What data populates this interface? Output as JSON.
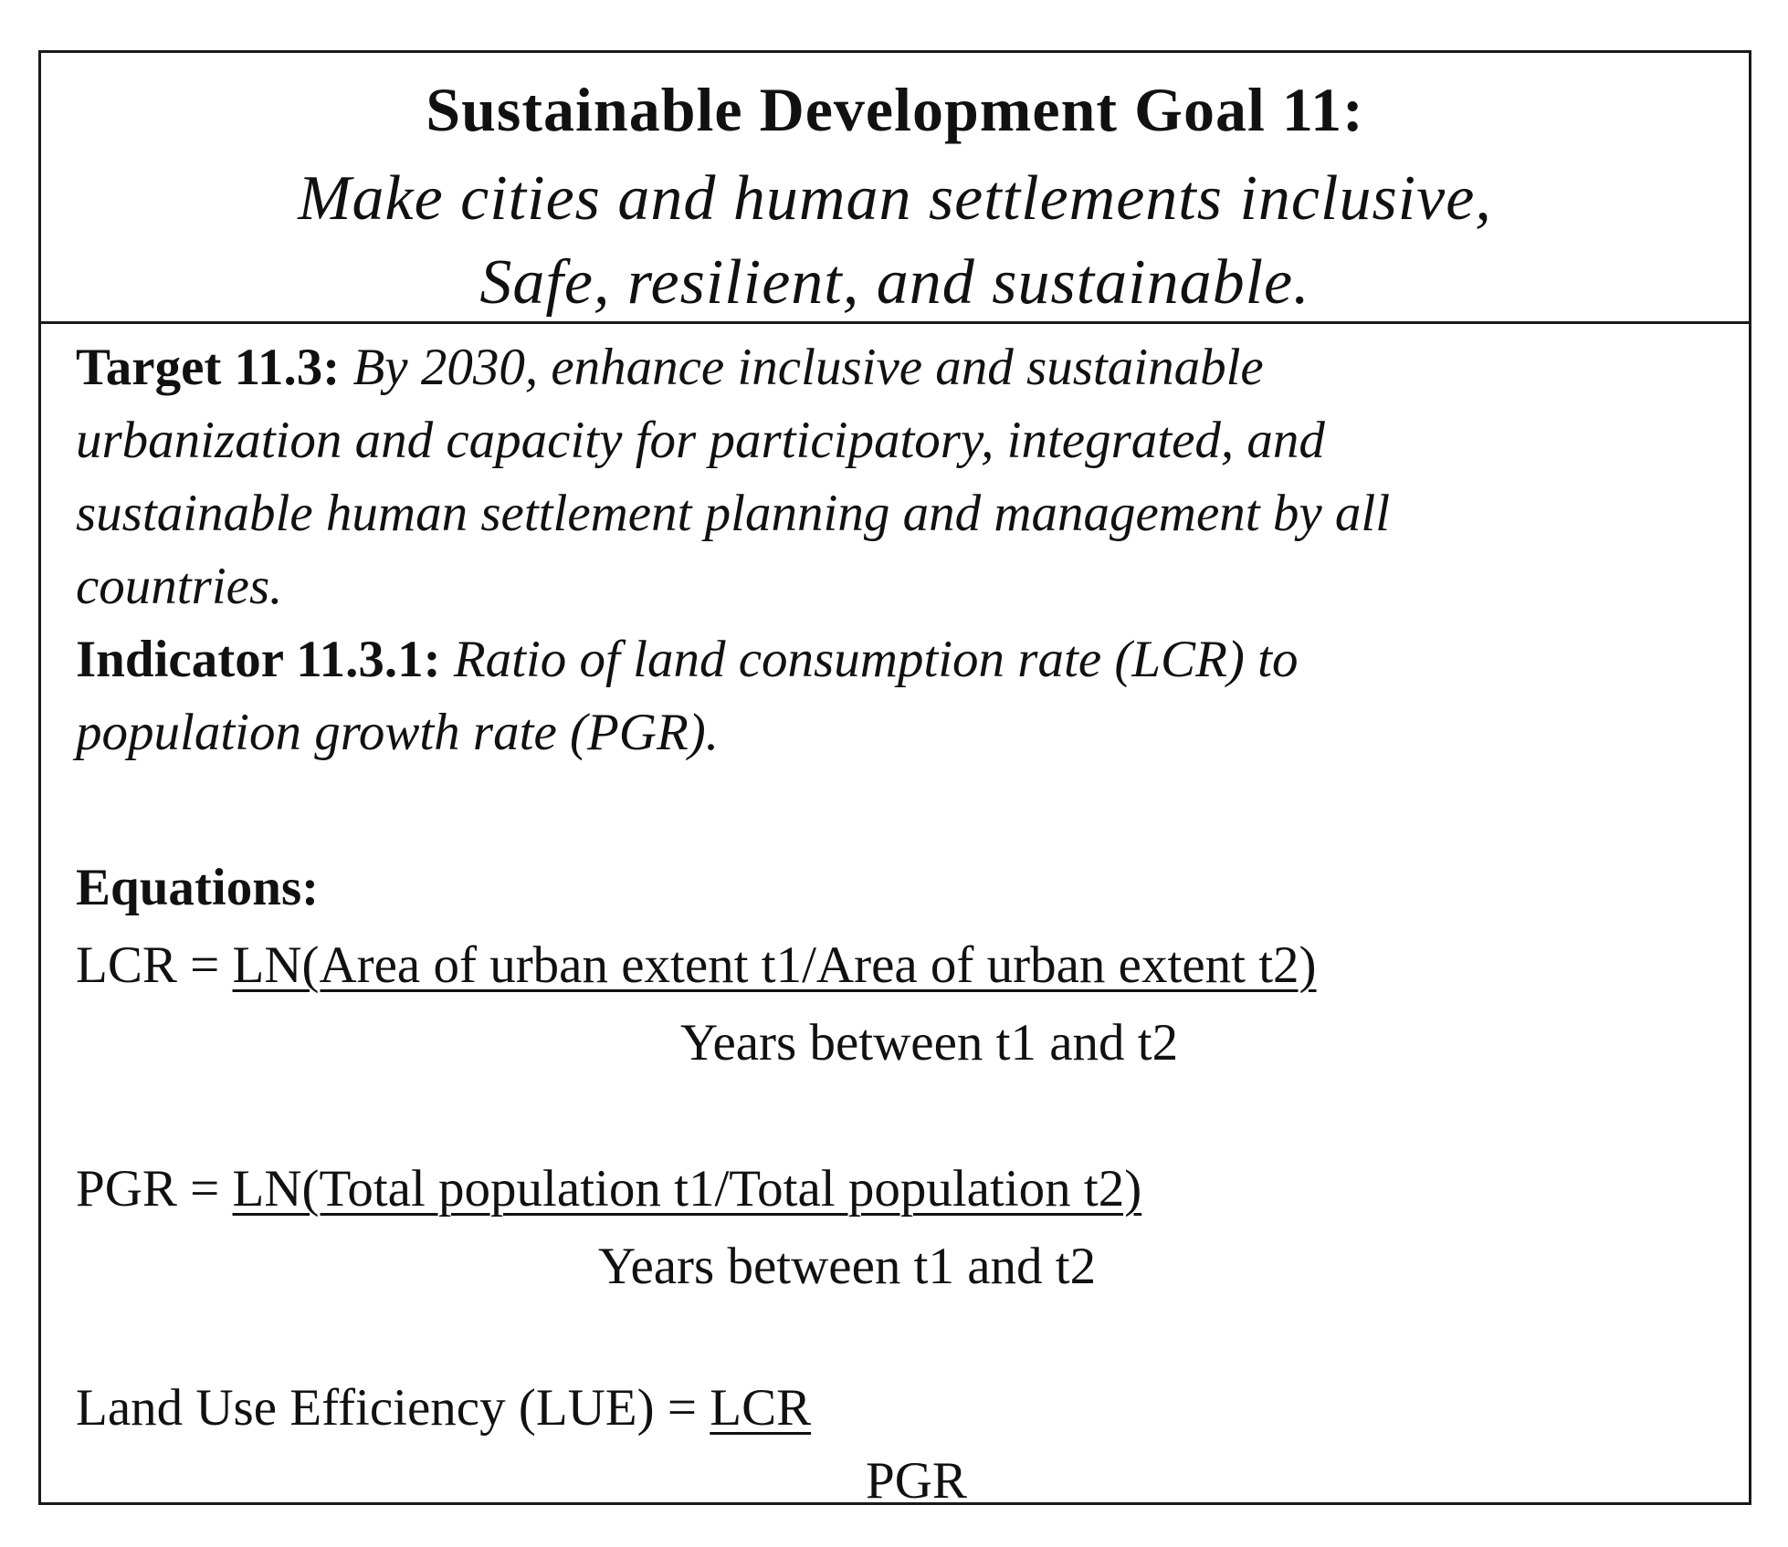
{
  "header": {
    "title": "Sustainable Development Goal 11:",
    "subtitle_line1": "Make cities and human settlements inclusive,",
    "subtitle_line2": "Safe, resilient, and sustainable."
  },
  "target": {
    "label": "Target 11.3:",
    "line1": "By 2030, enhance inclusive and sustainable",
    "line2": "urbanization and capacity for participatory, integrated, and",
    "line3": "sustainable human settlement planning and management by all",
    "line4": "countries."
  },
  "indicator": {
    "label": "Indicator 11.3.1:",
    "line1": "Ratio of land consumption rate (LCR) to",
    "line2": "population growth rate (PGR)."
  },
  "equations": {
    "heading": "Equations:",
    "lcr": {
      "lhs": "LCR = ",
      "numerator": "LN(Area of urban extent t1/Area of urban extent t2)",
      "denominator": "Years between t1 and t2"
    },
    "pgr": {
      "lhs": "PGR = ",
      "numerator": "LN(Total population t1/Total population t2)",
      "denominator": "Years between t1 and t2"
    },
    "lue": {
      "lhs": "Land Use Efficiency (LUE) = ",
      "numerator": "LCR",
      "denominator": "PGR"
    }
  }
}
